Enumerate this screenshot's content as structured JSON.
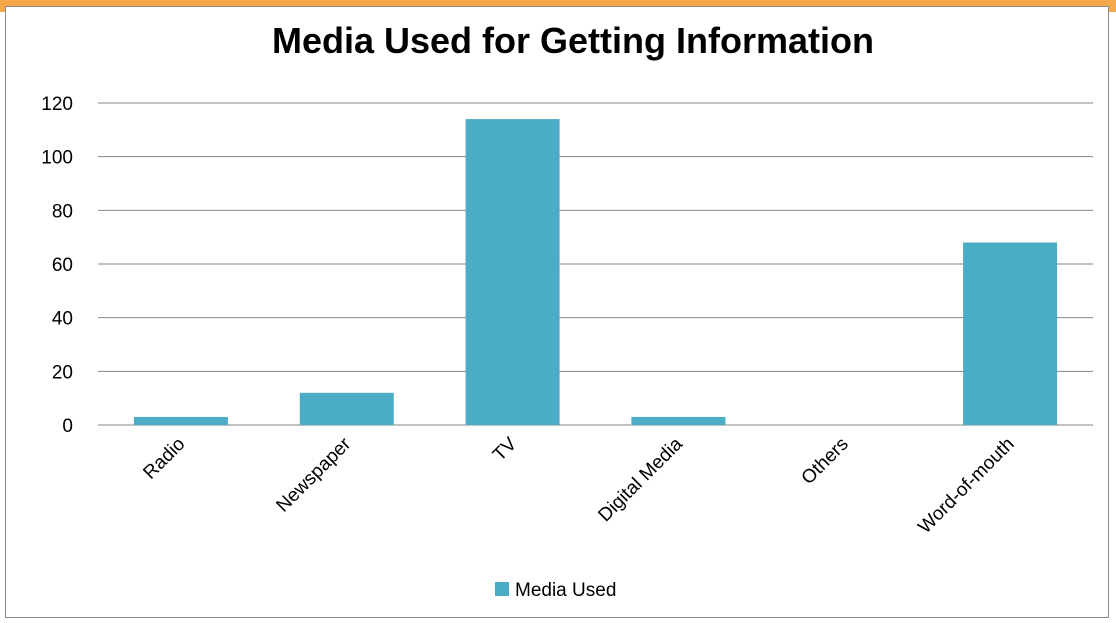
{
  "chart_data": {
    "type": "bar",
    "title": "Media Used for Getting Information",
    "xlabel": "",
    "ylabel": "",
    "categories": [
      "Radio",
      "Newspaper",
      "TV",
      "Digital Media",
      "Others",
      "Word-of-mouth"
    ],
    "series": [
      {
        "name": "Media Used",
        "values": [
          3,
          12,
          114,
          3,
          0,
          68
        ],
        "color": "#4bacc6"
      }
    ],
    "yticks": [
      "0",
      "20",
      "40",
      "60",
      "80",
      "100",
      "120"
    ],
    "ylim": [
      0,
      120
    ],
    "grid": true,
    "legend_position": "bottom"
  },
  "colors": {
    "bar": "#4bacc6",
    "gridline": "#868686",
    "frame": "#8a8a8a",
    "top_strip": "#f6a94a"
  }
}
